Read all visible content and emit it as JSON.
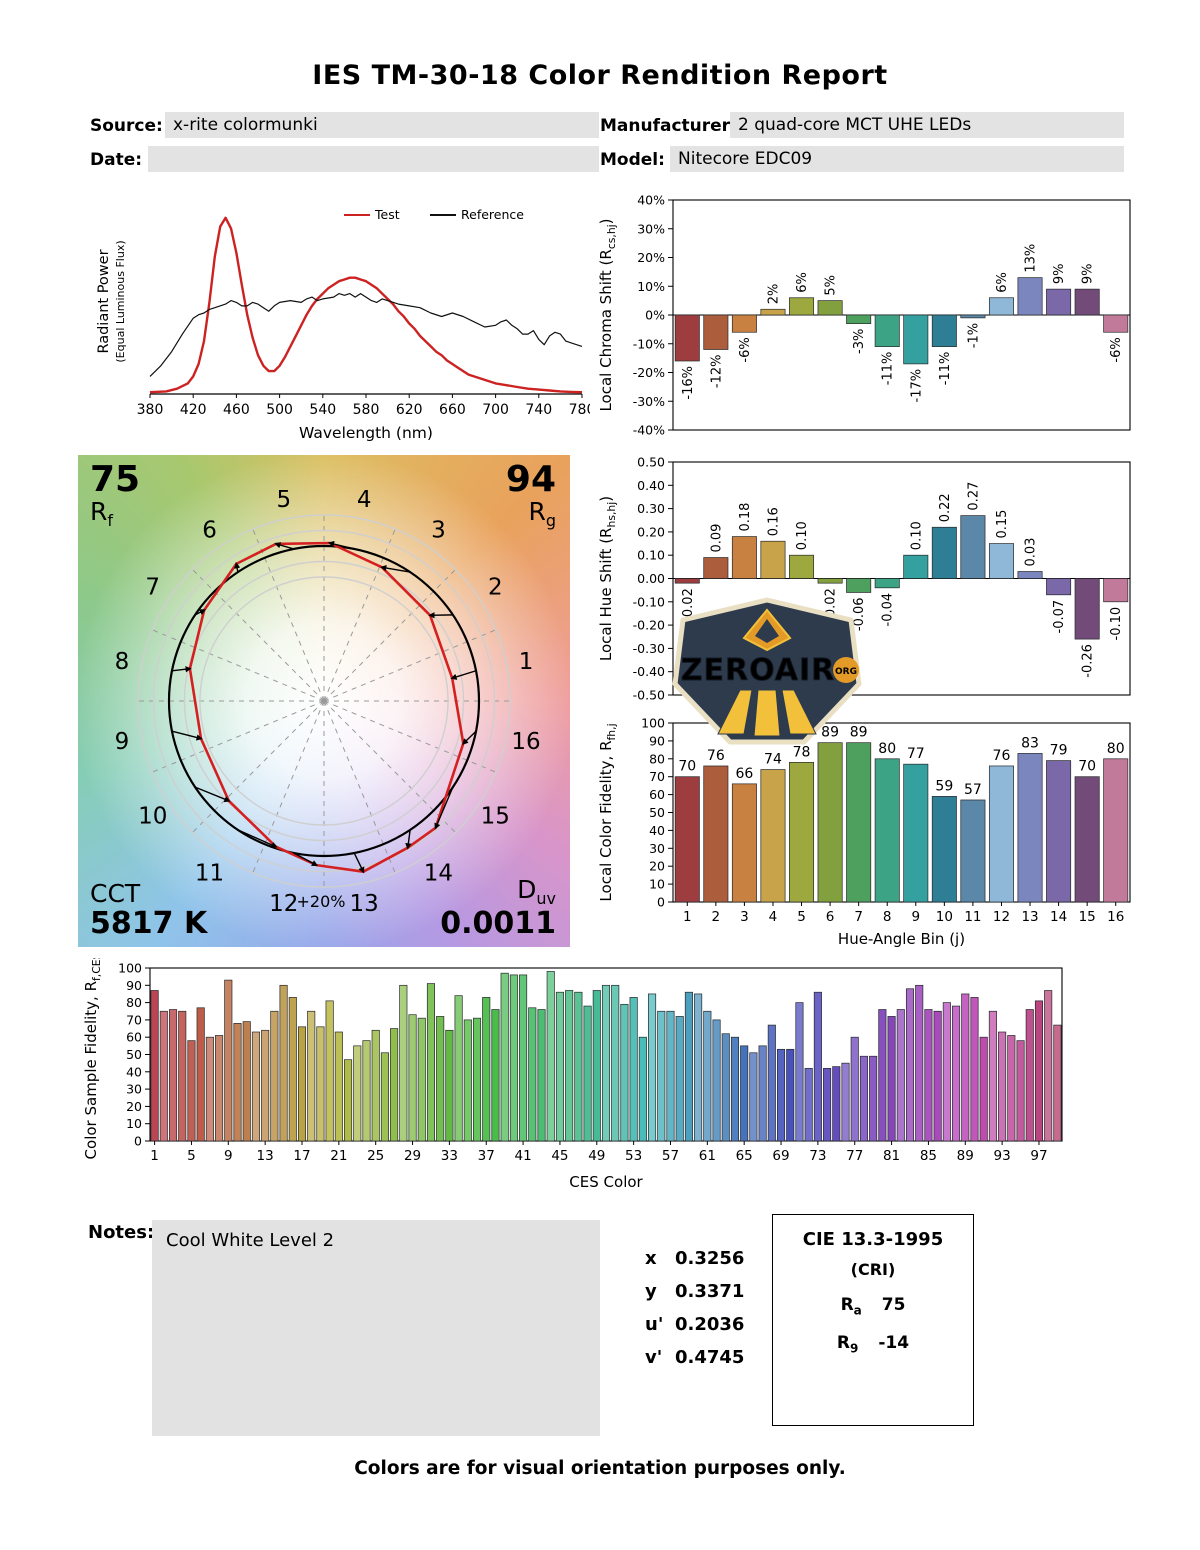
{
  "title": "IES TM-30-18 Color Rendition Report",
  "header": {
    "source_label": "Source:",
    "source_value": "x-rite colormunki",
    "manufacturer_label": "Manufacturer:",
    "manufacturer_value": "2 quad-core MCT UHE LEDs",
    "date_label": "Date:",
    "date_value": "",
    "model_label": "Model:",
    "model_value": "Nitecore EDC09"
  },
  "cvg": {
    "rf_value": "75",
    "rf_sym": "R",
    "rf_sub": "f",
    "rg_value": "94",
    "rg_sym": "R",
    "rg_sub": "g",
    "cct_label": "CCT",
    "cct_value": "5817 K",
    "duv_sym": "D",
    "duv_sub": "uv",
    "duv_value": "0.0011",
    "ring_label": "+20%"
  },
  "watermark": {
    "text": "ZEROAIR",
    "suffix": "ORG"
  },
  "notes": {
    "label": "Notes:",
    "text": "Cool White Level 2"
  },
  "chromaticity": {
    "rows": [
      {
        "label": "x",
        "value": "0.3256"
      },
      {
        "label": "y",
        "value": "0.3371"
      },
      {
        "label": "u'",
        "value": "0.2036"
      },
      {
        "label": "v'",
        "value": "0.4745"
      }
    ]
  },
  "cie": {
    "title": "CIE 13.3-1995",
    "subtitle": "(CRI)",
    "rows": [
      {
        "sym": "R",
        "sub": "a",
        "value": "75"
      },
      {
        "sym": "R",
        "sub": "9",
        "value": "-14"
      }
    ]
  },
  "footer": "Colors are for visual orientation purposes only.",
  "bin_colors": [
    "#9e3d3f",
    "#ab5d3c",
    "#c98141",
    "#c8a34a",
    "#9da83f",
    "#83a03e",
    "#4ea05e",
    "#3da385",
    "#35a0a0",
    "#2e7e96",
    "#5b87a8",
    "#8fb8d8",
    "#7b86bf",
    "#7a68a8",
    "#724b78",
    "#c27a9b"
  ],
  "chart_data": [
    {
      "id": "spd",
      "type": "line",
      "xlabel": "Wavelength (nm)",
      "ylabel_line1": "Radiant Power",
      "ylabel_line2": "(Equal Luminous Flux)",
      "xlim": [
        380,
        780
      ],
      "ylim": [
        0,
        1.05
      ],
      "xticks": [
        380,
        420,
        460,
        500,
        540,
        580,
        620,
        660,
        700,
        740,
        780
      ],
      "legend": [
        {
          "name": "Test",
          "color": "#cc2222",
          "text_color": "#cc2222"
        },
        {
          "name": "Reference",
          "color": "#111111",
          "text_color": "#111111"
        }
      ],
      "series": [
        {
          "name": "Test",
          "color": "#cc2222",
          "width": 2.4,
          "points": [
            [
              380,
              0.01
            ],
            [
              395,
              0.015
            ],
            [
              405,
              0.03
            ],
            [
              415,
              0.06
            ],
            [
              420,
              0.1
            ],
            [
              425,
              0.17
            ],
            [
              430,
              0.3
            ],
            [
              435,
              0.52
            ],
            [
              440,
              0.78
            ],
            [
              445,
              0.95
            ],
            [
              450,
              1.0
            ],
            [
              455,
              0.94
            ],
            [
              460,
              0.8
            ],
            [
              465,
              0.62
            ],
            [
              470,
              0.45
            ],
            [
              475,
              0.32
            ],
            [
              480,
              0.22
            ],
            [
              485,
              0.16
            ],
            [
              490,
              0.13
            ],
            [
              495,
              0.13
            ],
            [
              500,
              0.16
            ],
            [
              505,
              0.21
            ],
            [
              510,
              0.27
            ],
            [
              515,
              0.33
            ],
            [
              520,
              0.39
            ],
            [
              525,
              0.45
            ],
            [
              530,
              0.5
            ],
            [
              535,
              0.54
            ],
            [
              540,
              0.57
            ],
            [
              545,
              0.6
            ],
            [
              550,
              0.62
            ],
            [
              555,
              0.64
            ],
            [
              560,
              0.65
            ],
            [
              565,
              0.66
            ],
            [
              570,
              0.66
            ],
            [
              575,
              0.65
            ],
            [
              580,
              0.64
            ],
            [
              585,
              0.62
            ],
            [
              590,
              0.6
            ],
            [
              595,
              0.57
            ],
            [
              600,
              0.54
            ],
            [
              605,
              0.51
            ],
            [
              610,
              0.47
            ],
            [
              615,
              0.44
            ],
            [
              620,
              0.4
            ],
            [
              625,
              0.37
            ],
            [
              630,
              0.33
            ],
            [
              635,
              0.3
            ],
            [
              640,
              0.27
            ],
            [
              645,
              0.24
            ],
            [
              650,
              0.22
            ],
            [
              655,
              0.19
            ],
            [
              660,
              0.17
            ],
            [
              665,
              0.15
            ],
            [
              670,
              0.13
            ],
            [
              675,
              0.11
            ],
            [
              680,
              0.1
            ],
            [
              690,
              0.08
            ],
            [
              700,
              0.06
            ],
            [
              710,
              0.05
            ],
            [
              720,
              0.04
            ],
            [
              730,
              0.03
            ],
            [
              740,
              0.025
            ],
            [
              750,
              0.02
            ],
            [
              760,
              0.015
            ],
            [
              770,
              0.012
            ],
            [
              780,
              0.01
            ]
          ]
        },
        {
          "name": "Reference",
          "color": "#111111",
          "width": 1.2,
          "points": [
            [
              380,
              0.1
            ],
            [
              390,
              0.16
            ],
            [
              400,
              0.24
            ],
            [
              410,
              0.34
            ],
            [
              420,
              0.43
            ],
            [
              425,
              0.45
            ],
            [
              430,
              0.46
            ],
            [
              435,
              0.48
            ],
            [
              440,
              0.49
            ],
            [
              450,
              0.51
            ],
            [
              455,
              0.53
            ],
            [
              460,
              0.52
            ],
            [
              465,
              0.5
            ],
            [
              470,
              0.5
            ],
            [
              475,
              0.52
            ],
            [
              480,
              0.51
            ],
            [
              485,
              0.49
            ],
            [
              490,
              0.47
            ],
            [
              495,
              0.5
            ],
            [
              500,
              0.52
            ],
            [
              510,
              0.53
            ],
            [
              520,
              0.52
            ],
            [
              525,
              0.54
            ],
            [
              530,
              0.55
            ],
            [
              535,
              0.53
            ],
            [
              540,
              0.54
            ],
            [
              550,
              0.55
            ],
            [
              555,
              0.57
            ],
            [
              560,
              0.56
            ],
            [
              565,
              0.57
            ],
            [
              570,
              0.55
            ],
            [
              575,
              0.57
            ],
            [
              580,
              0.55
            ],
            [
              585,
              0.53
            ],
            [
              590,
              0.52
            ],
            [
              595,
              0.54
            ],
            [
              600,
              0.53
            ],
            [
              610,
              0.51
            ],
            [
              620,
              0.5
            ],
            [
              630,
              0.49
            ],
            [
              640,
              0.46
            ],
            [
              650,
              0.44
            ],
            [
              660,
              0.46
            ],
            [
              670,
              0.44
            ],
            [
              680,
              0.41
            ],
            [
              690,
              0.38
            ],
            [
              700,
              0.39
            ],
            [
              705,
              0.41
            ],
            [
              710,
              0.42
            ],
            [
              715,
              0.39
            ],
            [
              720,
              0.37
            ],
            [
              725,
              0.34
            ],
            [
              730,
              0.34
            ],
            [
              735,
              0.36
            ],
            [
              740,
              0.31
            ],
            [
              745,
              0.28
            ],
            [
              750,
              0.33
            ],
            [
              755,
              0.35
            ],
            [
              760,
              0.34
            ],
            [
              765,
              0.3
            ],
            [
              770,
              0.29
            ],
            [
              775,
              0.28
            ],
            [
              780,
              0.27
            ]
          ]
        }
      ]
    },
    {
      "id": "chroma",
      "type": "bar",
      "ylabel_parts": [
        [
          "Local Chroma Shift (R",
          0
        ],
        [
          "cs,hj",
          1
        ],
        [
          ")",
          0
        ]
      ],
      "ylim": [
        -40,
        40
      ],
      "ytick_values": [
        40,
        30,
        20,
        10,
        0,
        -10,
        -20,
        -30,
        -40
      ],
      "ytick_labels": [
        "40%",
        "30%",
        "20%",
        "10%",
        "0%",
        "-10%",
        "-20%",
        "-30%",
        "-40%"
      ],
      "values": [
        -16,
        -12,
        -6,
        2,
        6,
        5,
        -3,
        -11,
        -17,
        -11,
        -1,
        6,
        13,
        9,
        9,
        -6
      ],
      "bar_labels": [
        "-16%",
        "-12%",
        "-6%",
        "2%",
        "6%",
        "5%",
        "-3%",
        "-11%",
        "-17%",
        "-11%",
        "-1%",
        "6%",
        "13%",
        "9%",
        "9%",
        "-6%"
      ],
      "label_rotate": true,
      "colors": "bins",
      "bar_frac": 0.85
    },
    {
      "id": "hue",
      "type": "bar",
      "ylabel_parts": [
        [
          "Local Hue Shift (R",
          0
        ],
        [
          "hs,hj",
          1
        ],
        [
          ")",
          0
        ]
      ],
      "ylim": [
        -0.5,
        0.5
      ],
      "ytick_values": [
        0.5,
        0.4,
        0.3,
        0.2,
        0.1,
        0,
        -0.1,
        -0.2,
        -0.3,
        -0.4,
        -0.5
      ],
      "ytick_labels": [
        "0.50",
        "0.40",
        "0.30",
        "0.20",
        "0.10",
        "0.00",
        "-0.10",
        "-0.20",
        "-0.30",
        "-0.40",
        "-0.50"
      ],
      "values": [
        -0.02,
        0.09,
        0.18,
        0.16,
        0.1,
        -0.02,
        -0.06,
        -0.04,
        0.1,
        0.22,
        0.27,
        0.15,
        0.03,
        -0.07,
        -0.26,
        -0.1
      ],
      "bar_labels": [
        "-0.02",
        "0.09",
        "0.18",
        "0.16",
        "0.10",
        "-0.02",
        "-0.06",
        "-0.04",
        "0.10",
        "0.22",
        "0.27",
        "0.15",
        "0.03",
        "-0.07",
        "-0.26",
        "-0.10"
      ],
      "label_rotate": true,
      "colors": "bins",
      "bar_frac": 0.85
    },
    {
      "id": "fidelity",
      "type": "bar",
      "ylabel_parts": [
        [
          "Local Color Fidelity, R",
          0
        ],
        [
          "fh,j",
          1
        ]
      ],
      "xlabel": "Hue-Angle Bin (j)",
      "ylim": [
        0,
        100
      ],
      "ytick_values": [
        0,
        10,
        20,
        30,
        40,
        50,
        60,
        70,
        80,
        90,
        100
      ],
      "ytick_labels": [
        "0",
        "10",
        "20",
        "30",
        "40",
        "50",
        "60",
        "70",
        "80",
        "90",
        "100"
      ],
      "values": [
        70,
        76,
        66,
        74,
        78,
        89,
        89,
        80,
        77,
        59,
        57,
        76,
        83,
        79,
        70,
        80
      ],
      "bar_labels": [
        "70",
        "76",
        "66",
        "74",
        "78",
        "89",
        "89",
        "80",
        "77",
        "59",
        "57",
        "76",
        "83",
        "79",
        "70",
        "80"
      ],
      "label_rotate": false,
      "colors": "bins",
      "bar_frac": 0.85,
      "xtick_positions": [
        0,
        1,
        2,
        3,
        4,
        5,
        6,
        7,
        8,
        9,
        10,
        11,
        12,
        13,
        14,
        15
      ],
      "xtick_labels": [
        "1",
        "2",
        "3",
        "4",
        "5",
        "6",
        "7",
        "8",
        "9",
        "10",
        "11",
        "12",
        "13",
        "14",
        "15",
        "16"
      ]
    },
    {
      "id": "ces",
      "type": "bar",
      "ylabel_parts": [
        [
          "Color Sample Fidelity, R",
          0
        ],
        [
          "f,CESi",
          1
        ]
      ],
      "xlabel": "CES Color",
      "ylim": [
        0,
        100
      ],
      "ytick_values": [
        0,
        10,
        20,
        30,
        40,
        50,
        60,
        70,
        80,
        90,
        100
      ],
      "ytick_labels": [
        "0",
        "10",
        "20",
        "30",
        "40",
        "50",
        "60",
        "70",
        "80",
        "90",
        "100"
      ],
      "values": [
        87,
        75,
        76,
        75,
        58,
        77,
        60,
        61,
        93,
        68,
        69,
        63,
        64,
        75,
        90,
        83,
        66,
        75,
        66,
        81,
        63,
        47,
        55,
        58,
        64,
        51,
        65,
        90,
        73,
        71,
        91,
        72,
        64,
        84,
        70,
        71,
        83,
        76,
        97,
        96,
        96,
        77,
        76,
        98,
        86,
        87,
        86,
        78,
        87,
        90,
        90,
        79,
        83,
        60,
        85,
        75,
        75,
        72,
        86,
        85,
        75,
        70,
        62,
        60,
        55,
        51,
        55,
        67,
        53,
        53,
        80,
        42,
        86,
        42,
        43,
        45,
        60,
        49,
        49,
        76,
        72,
        76,
        88,
        90,
        76,
        75,
        80,
        78,
        85,
        83,
        60,
        75,
        63,
        61,
        58,
        76,
        81,
        87,
        67
      ],
      "label_rotate": false,
      "colors": "ces",
      "bar_frac": 0.8,
      "xtick_positions": [
        0,
        4,
        8,
        12,
        16,
        20,
        24,
        28,
        32,
        36,
        40,
        44,
        48,
        52,
        56,
        60,
        64,
        68,
        72,
        76,
        80,
        84,
        88,
        92,
        96
      ],
      "xtick_labels": [
        "1",
        "5",
        "9",
        "13",
        "17",
        "21",
        "25",
        "29",
        "33",
        "37",
        "41",
        "45",
        "49",
        "53",
        "57",
        "61",
        "65",
        "69",
        "73",
        "77",
        "81",
        "85",
        "89",
        "93",
        "97"
      ]
    }
  ]
}
